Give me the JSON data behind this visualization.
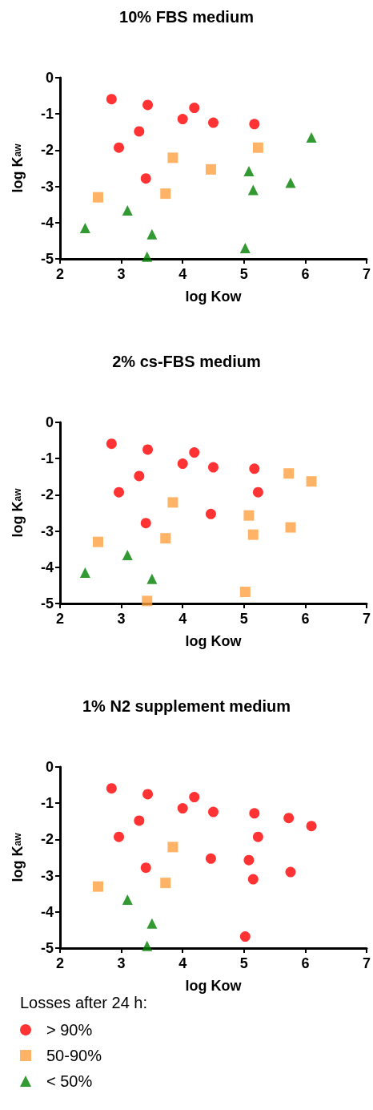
{
  "chart_data": [
    {
      "type": "scatter",
      "title": "10% FBS medium",
      "xlabel": "log Kow",
      "ylabel": "log K$_{aw}$",
      "xlim": [
        2,
        7
      ],
      "xticks": [
        2,
        3,
        4,
        5,
        6,
        7
      ],
      "ylim": [
        -5,
        0
      ],
      "yticks": [
        -5,
        -4,
        -3,
        -2,
        -1,
        0
      ],
      "grid": false,
      "legend": false,
      "series": [
        {
          "color": "#ff0000",
          "marker": "circle",
          "x": [
            2.84,
            3.43,
            4.19,
            4.0,
            4.5,
            5.17,
            3.29,
            2.96,
            3.4
          ],
          "values": [
            -0.59,
            -0.75,
            -0.83,
            -1.14,
            -1.24,
            -1.28,
            -1.48,
            -1.93,
            -2.78
          ]
        },
        {
          "color": "#ffa040",
          "marker": "square",
          "x": [
            3.84,
            5.23,
            4.46,
            3.72,
            2.62
          ],
          "values": [
            -2.21,
            -1.93,
            -2.53,
            -3.2,
            -3.3
          ]
        },
        {
          "color": "#008000",
          "marker": "triangle",
          "x": [
            6.1,
            5.08,
            5.76,
            5.15,
            3.1,
            2.41,
            3.5,
            5.02,
            3.42
          ],
          "values": [
            -1.65,
            -2.58,
            -2.9,
            -3.1,
            -3.66,
            -4.15,
            -4.32,
            -4.7,
            -4.94
          ]
        }
      ]
    },
    {
      "type": "scatter",
      "title": "2% cs-FBS medium",
      "xlabel": "log Kow",
      "ylabel": "log K$_{aw}$",
      "xlim": [
        2,
        7
      ],
      "xticks": [
        2,
        3,
        4,
        5,
        6,
        7
      ],
      "ylim": [
        -5,
        0
      ],
      "yticks": [
        -5,
        -4,
        -3,
        -2,
        -1,
        0
      ],
      "grid": false,
      "legend": false,
      "series": [
        {
          "color": "#ff0000",
          "marker": "circle",
          "x": [
            2.84,
            3.43,
            4.19,
            4.0,
            4.5,
            5.17,
            3.29,
            2.96,
            3.4,
            5.23,
            4.46
          ],
          "values": [
            -0.59,
            -0.75,
            -0.83,
            -1.14,
            -1.24,
            -1.28,
            -1.48,
            -1.93,
            -2.78,
            -1.93,
            -2.53
          ]
        },
        {
          "color": "#ffa040",
          "marker": "square",
          "x": [
            3.84,
            3.72,
            2.62,
            5.73,
            6.1,
            5.08,
            5.76,
            5.15,
            5.02,
            3.42
          ],
          "values": [
            -2.21,
            -3.2,
            -3.3,
            -1.41,
            -1.63,
            -2.57,
            -2.9,
            -3.1,
            -4.68,
            -4.93
          ]
        },
        {
          "color": "#008000",
          "marker": "triangle",
          "x": [
            3.1,
            2.41,
            3.5
          ],
          "values": [
            -3.66,
            -4.15,
            -4.32
          ]
        }
      ]
    },
    {
      "type": "scatter",
      "title": "1% N2 supplement medium",
      "xlabel": "log Kow",
      "ylabel": "log K$_{aw}$",
      "xlim": [
        2,
        7
      ],
      "xticks": [
        2,
        3,
        4,
        5,
        6,
        7
      ],
      "ylim": [
        -5,
        0
      ],
      "yticks": [
        -5,
        -4,
        -3,
        -2,
        -1,
        0
      ],
      "grid": false,
      "legend": "bottom",
      "legend_title": "Losses after 24 h:",
      "series": [
        {
          "name": "> 90%",
          "color": "#ff0000",
          "marker": "circle",
          "x": [
            2.84,
            3.43,
            4.19,
            4.0,
            4.5,
            5.17,
            3.29,
            2.96,
            3.4,
            5.73,
            6.1,
            5.23,
            4.46,
            5.08,
            5.76,
            5.15,
            5.02
          ],
          "values": [
            -0.59,
            -0.75,
            -0.83,
            -1.14,
            -1.24,
            -1.28,
            -1.48,
            -1.93,
            -2.78,
            -1.41,
            -1.63,
            -1.93,
            -2.53,
            -2.57,
            -2.9,
            -3.1,
            -4.68
          ]
        },
        {
          "name": "50-90%",
          "color": "#ffa040",
          "marker": "square",
          "x": [
            3.84,
            3.72,
            2.62
          ],
          "values": [
            -2.21,
            -3.2,
            -3.3
          ]
        },
        {
          "name": "< 50%",
          "color": "#008000",
          "marker": "triangle",
          "x": [
            3.1,
            3.5,
            3.42
          ],
          "values": [
            -3.66,
            -4.32,
            -4.94
          ]
        }
      ]
    }
  ]
}
